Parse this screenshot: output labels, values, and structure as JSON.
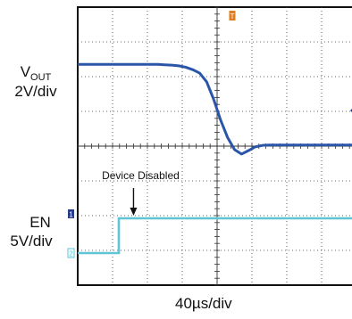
{
  "chart_data": {
    "type": "line",
    "title": "",
    "x_scale": {
      "per_division": "40µs/div",
      "label": "40µs/div"
    },
    "divisions": {
      "horizontal": 8,
      "vertical": 8
    },
    "grid": true,
    "x": [
      0,
      0.5,
      0.9,
      1.1,
      1.3,
      1.5,
      1.7,
      1.9,
      2.1,
      2.3,
      2.5,
      2.7,
      2.9,
      3.1,
      3.3,
      3.5,
      3.7,
      3.9,
      4.1,
      4.3,
      4.5,
      4.7,
      4.9,
      5.1,
      5.3,
      5.5,
      5.7,
      5.9,
      6.1,
      6.3,
      6.5,
      6.7,
      6.9,
      7.1,
      7.3,
      7.5,
      7.7,
      8
    ],
    "series": [
      {
        "name": "VOUT",
        "channel_marker": "1",
        "label_main": "V",
        "label_sub": "OUT",
        "scale": "2V/div",
        "color": "#2a55a8",
        "offset_div": 2,
        "values_div": [
          4.3,
          4.3,
          4.3,
          4.3,
          4.3,
          4.3,
          4.3,
          4.3,
          4.3,
          4.3,
          4.29,
          4.28,
          4.26,
          4.22,
          4.15,
          4.05,
          3.8,
          3.3,
          2.7,
          2.2,
          1.85,
          1.72,
          1.82,
          1.93,
          1.97,
          1.98,
          1.98,
          1.98,
          1.98,
          1.98,
          1.98,
          1.98,
          1.98,
          1.98,
          1.98,
          1.98,
          1.98,
          1.98
        ]
      },
      {
        "name": "EN",
        "channel_marker": "2",
        "label_main": "EN",
        "scale": "5V/div",
        "color": "#5fc4d6",
        "offset_div": 0,
        "step_at_x": 1.18,
        "low_div": 0,
        "high_div": 1
      }
    ],
    "trigger_marker": "T",
    "annotations": [
      {
        "text": "Device Disabled",
        "x": 1.55,
        "y_div": 1.0
      }
    ]
  },
  "colors": {
    "frame": "#111111",
    "grid": "#333333",
    "trigger": "#e07b20",
    "ch1_marker": "#2a3a8a",
    "ch2_marker": "#5fc4d6"
  }
}
